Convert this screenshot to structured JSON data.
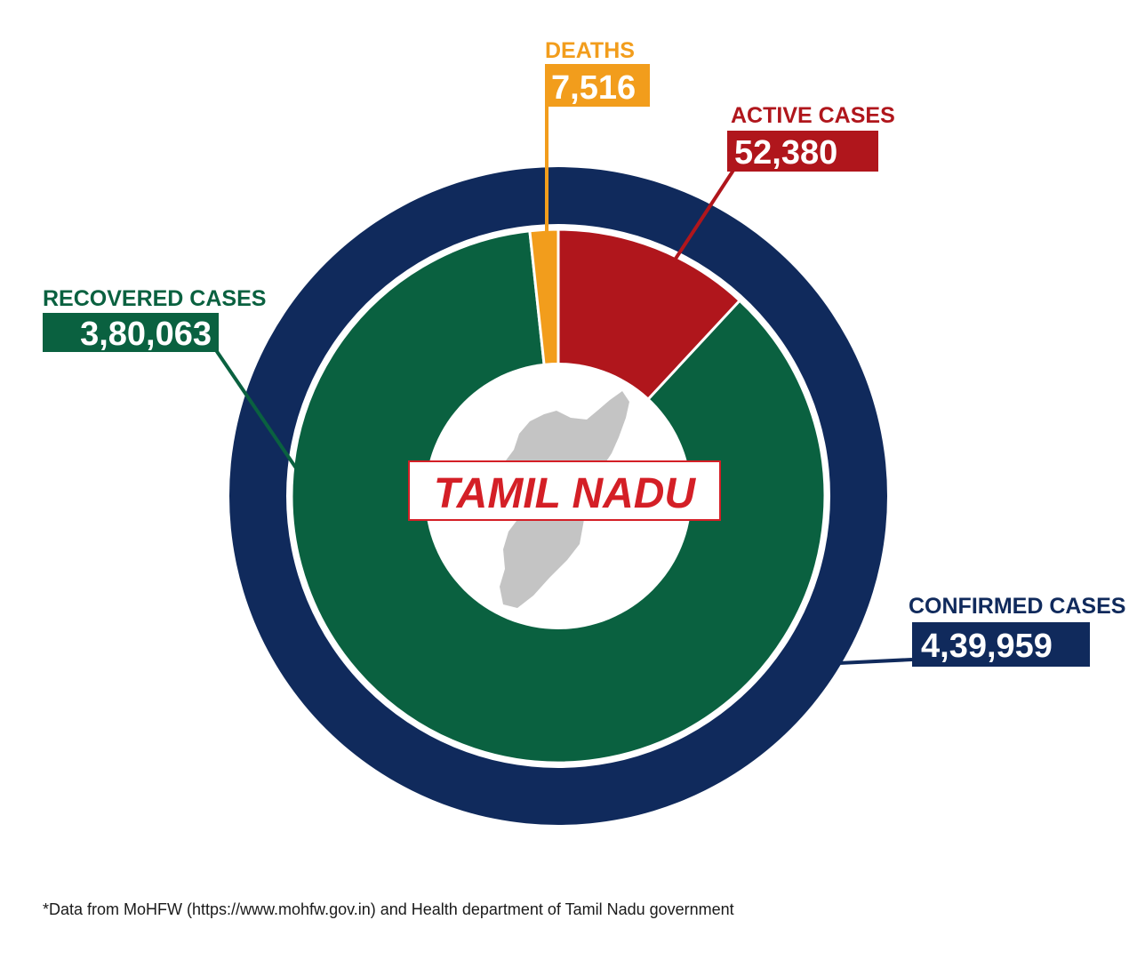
{
  "chart_data": {
    "type": "pie",
    "title": "TAMIL NADU",
    "total": {
      "label": "CONFIRMED CASES",
      "display": "4,39,959",
      "value": 439959,
      "color": "#102a5c"
    },
    "slices": [
      {
        "key": "deaths",
        "label": "DEATHS",
        "display": "7,516",
        "value": 7516,
        "color": "#f29d1c"
      },
      {
        "key": "active",
        "label": "ACTIVE CASES",
        "display": "52,380",
        "value": 52380,
        "color": "#b0161c"
      },
      {
        "key": "recovered",
        "label": "RECOVERED CASES",
        "display": "3,80,063",
        "value": 380063,
        "color": "#0a6140"
      }
    ],
    "title_color": "#d41f26",
    "map_color": "#c4c4c4"
  },
  "footnote": "*Data from MoHFW (https://www.mohfw.gov.in) and Health department of Tamil Nadu government"
}
